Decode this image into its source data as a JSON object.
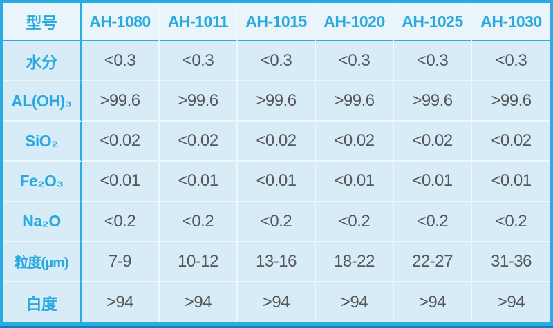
{
  "colors": {
    "frame_border": "#29ace2",
    "grid_line": "#eef8fc",
    "header_bg": "#e9f4fb",
    "cell_bg": "#d8ecf7",
    "accent_text": "#2aa9e0",
    "value_text": "#55575a",
    "bottom_strip": "#1d7ab8"
  },
  "table": {
    "corner_label": "型号",
    "columns": [
      "AH-1080",
      "AH-1011",
      "AH-1015",
      "AH-1020",
      "AH-1025",
      "AH-1030"
    ],
    "rows": [
      {
        "label": "水分",
        "values": [
          "<0.3",
          "<0.3",
          "<0.3",
          "<0.3",
          "<0.3",
          "<0.3"
        ]
      },
      {
        "label": "AL(OH)₃",
        "values": [
          ">99.6",
          ">99.6",
          ">99.6",
          ">99.6",
          ">99.6",
          ">99.6"
        ]
      },
      {
        "label": "SiO₂",
        "values": [
          "<0.02",
          "<0.02",
          "<0.02",
          "<0.02",
          "<0.02",
          "<0.02"
        ]
      },
      {
        "label": "Fe₂O₃",
        "values": [
          "<0.01",
          "<0.01",
          "<0.01",
          "<0.01",
          "<0.01",
          "<0.01"
        ]
      },
      {
        "label": "Na₂O",
        "values": [
          "<0.2",
          "<0.2",
          "<0.2",
          "<0.2",
          "<0.2",
          "<0.2"
        ]
      },
      {
        "label": "粒度(μm)",
        "values": [
          "7-9",
          "10-12",
          "13-16",
          "18-22",
          "22-27",
          "31-36"
        ]
      },
      {
        "label": "白度",
        "values": [
          ">94",
          ">94",
          ">94",
          ">94",
          ">94",
          ">94"
        ]
      }
    ]
  }
}
